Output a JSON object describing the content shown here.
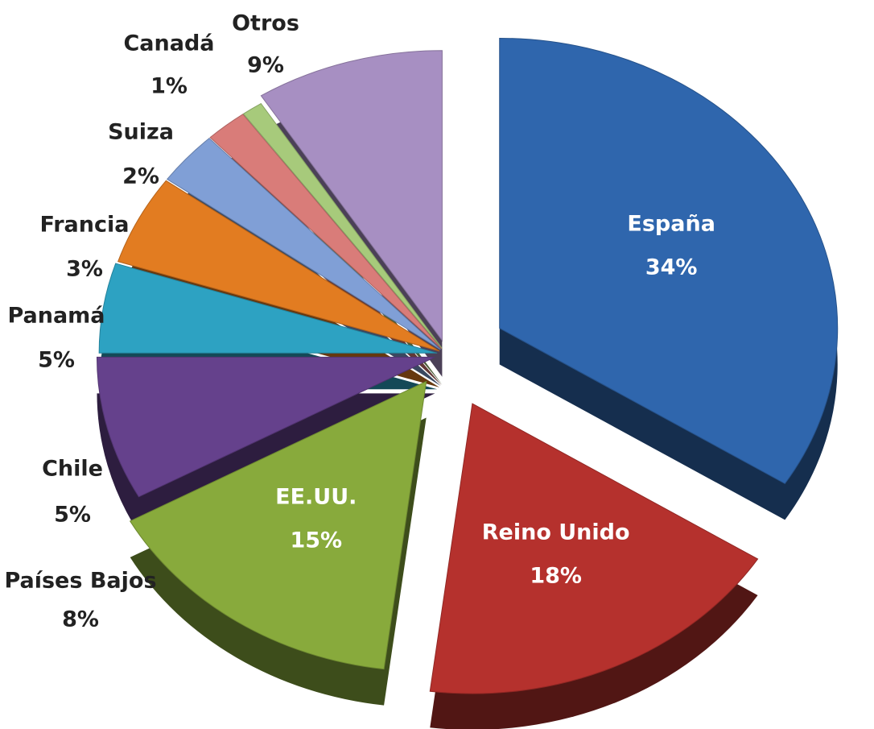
{
  "chart_data": {
    "type": "pie",
    "categories": [
      "España",
      "Reino Unido",
      "EE.UU.",
      "Países Bajos",
      "Chile",
      "Panamá",
      "Francia",
      "Suiza",
      "Canadá",
      "Otros"
    ],
    "values": [
      34,
      18,
      15,
      8,
      5,
      5,
      3,
      2,
      1,
      9
    ],
    "value_labels": [
      "34%",
      "18%",
      "15%",
      "8%",
      "5%",
      "5%",
      "3%",
      "2%",
      "1%",
      "9%"
    ],
    "colors": [
      "#2f66ad",
      "#b5312d",
      "#88aa3c",
      "#65418c",
      "#2da2c2",
      "#e27c21",
      "#809fd6",
      "#d97c79",
      "#a7ca7b",
      "#a78fc2"
    ]
  }
}
